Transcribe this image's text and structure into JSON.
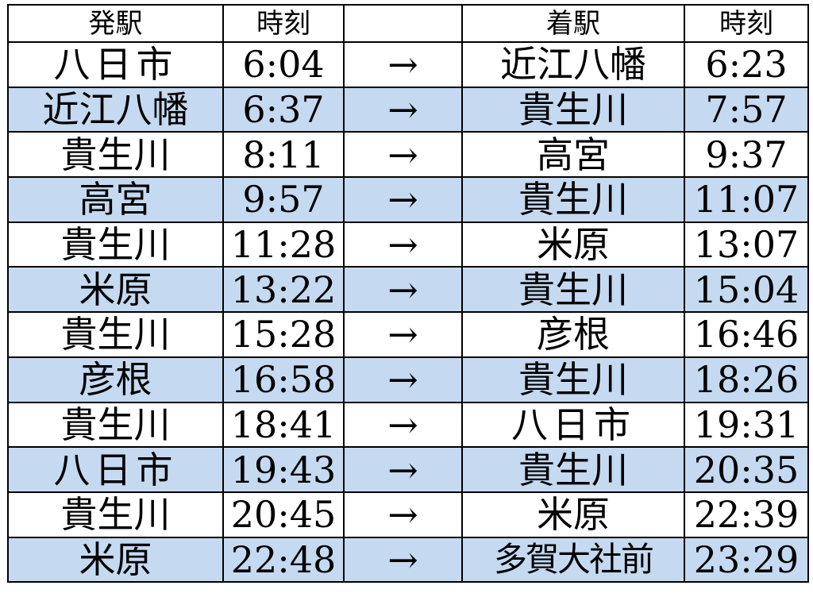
{
  "header": {
    "departure_station": "発駅",
    "departure_time": "時刻",
    "direction": "",
    "arrival_station": "着駅",
    "arrival_time": "時刻"
  },
  "arrow": "→",
  "colors": {
    "shaded_row": "#c5d9f1",
    "grid": "#000000"
  },
  "rows": [
    {
      "from": "八日市",
      "dep": "6:04",
      "to": "近江八幡",
      "arr": "6:23"
    },
    {
      "from": "近江八幡",
      "dep": "6:37",
      "to": "貴生川",
      "arr": "7:57"
    },
    {
      "from": "貴生川",
      "dep": "8:11",
      "to": "高宮",
      "arr": "9:37"
    },
    {
      "from": "高宮",
      "dep": "9:57",
      "to": "貴生川",
      "arr": "11:07"
    },
    {
      "from": "貴生川",
      "dep": "11:28",
      "to": "米原",
      "arr": "13:07"
    },
    {
      "from": "米原",
      "dep": "13:22",
      "to": "貴生川",
      "arr": "15:04"
    },
    {
      "from": "貴生川",
      "dep": "15:28",
      "to": "彦根",
      "arr": "16:46"
    },
    {
      "from": "彦根",
      "dep": "16:58",
      "to": "貴生川",
      "arr": "18:26"
    },
    {
      "from": "貴生川",
      "dep": "18:41",
      "to": "八日市",
      "arr": "19:31"
    },
    {
      "from": "八日市",
      "dep": "19:43",
      "to": "貴生川",
      "arr": "20:35"
    },
    {
      "from": "貴生川",
      "dep": "20:45",
      "to": "米原",
      "arr": "22:39"
    },
    {
      "from": "米原",
      "dep": "22:48",
      "to": "多賀大社前",
      "arr": "23:29"
    }
  ]
}
